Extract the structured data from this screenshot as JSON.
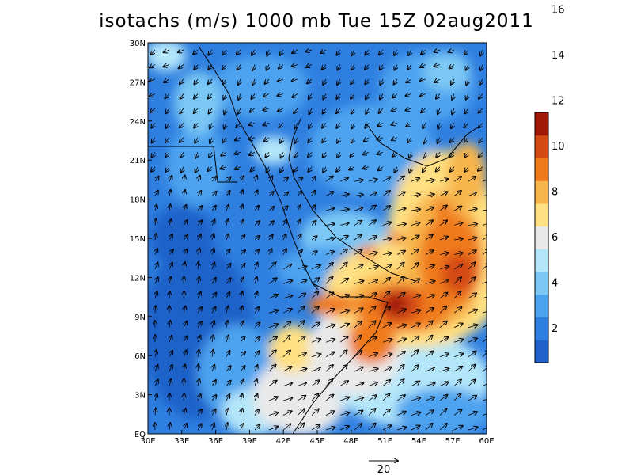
{
  "title": "isotachs (m/s) 1000 mb Tue 15Z 02aug2011",
  "map": {
    "lon_range": [
      30,
      60
    ],
    "lat_range": [
      0,
      30
    ],
    "lon_ticks": [
      "30E",
      "33E",
      "36E",
      "39E",
      "42E",
      "45E",
      "48E",
      "51E",
      "54E",
      "57E",
      "60E"
    ],
    "lat_ticks": [
      "EQ",
      "3N",
      "6N",
      "9N",
      "12N",
      "15N",
      "18N",
      "21N",
      "24N",
      "27N",
      "30N"
    ]
  },
  "colorbar": {
    "labels": [
      "2",
      "4",
      "6",
      "8",
      "10",
      "12",
      "14",
      "16"
    ],
    "colors": [
      "#1f62c9",
      "#2f7fe0",
      "#4ea3ef",
      "#7cc8f5",
      "#b4e6f9",
      "#e9e9e9",
      "#ffe082",
      "#f7b54c",
      "#ef7a1c",
      "#d44a14",
      "#a01808"
    ]
  },
  "reference_vector": {
    "label": "20"
  }
}
